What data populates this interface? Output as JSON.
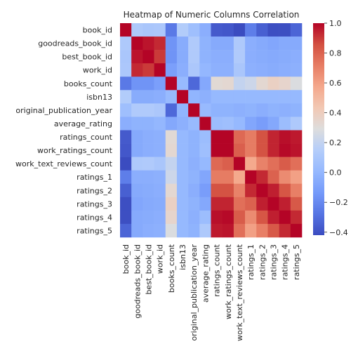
{
  "chart_data": {
    "type": "heatmap",
    "title": "Heatmap of Numeric Columns Correlation",
    "xlabel": "",
    "ylabel": "",
    "labels": [
      "book_id",
      "goodreads_book_id",
      "best_book_id",
      "work_id",
      "books_count",
      "isbn13",
      "original_publication_year",
      "average_rating",
      "ratings_count",
      "work_ratings_count",
      "work_text_reviews_count",
      "ratings_1",
      "ratings_2",
      "ratings_3",
      "ratings_4",
      "ratings_5"
    ],
    "matrix": [
      [
        1.0,
        0.12,
        0.1,
        0.11,
        -0.26,
        0.14,
        0.05,
        -0.04,
        -0.37,
        -0.38,
        -0.42,
        -0.24,
        -0.35,
        -0.41,
        -0.41,
        -0.33
      ],
      [
        0.12,
        1.0,
        0.97,
        0.93,
        -0.16,
        -0.05,
        0.13,
        -0.02,
        -0.06,
        -0.06,
        0.12,
        -0.04,
        -0.06,
        -0.08,
        -0.06,
        -0.06
      ],
      [
        0.1,
        0.97,
        1.0,
        0.9,
        -0.16,
        -0.05,
        0.13,
        -0.02,
        -0.04,
        -0.04,
        0.13,
        -0.04,
        -0.05,
        -0.06,
        -0.05,
        -0.04
      ],
      [
        0.11,
        0.93,
        0.9,
        1.0,
        -0.11,
        -0.04,
        0.11,
        0.0,
        -0.03,
        -0.03,
        0.1,
        -0.03,
        -0.04,
        -0.05,
        -0.04,
        -0.03
      ],
      [
        -0.26,
        -0.16,
        -0.16,
        -0.11,
        1.0,
        0.02,
        -0.32,
        -0.07,
        0.32,
        0.33,
        0.2,
        0.23,
        0.33,
        0.38,
        0.35,
        0.28
      ],
      [
        0.14,
        -0.05,
        -0.05,
        -0.04,
        0.02,
        1.0,
        -0.01,
        -0.03,
        0.01,
        0.01,
        0.01,
        0.01,
        0.01,
        0.01,
        0.01,
        0.01
      ],
      [
        0.05,
        0.13,
        0.13,
        0.11,
        -0.32,
        -0.01,
        1.0,
        0.02,
        -0.02,
        -0.02,
        -0.03,
        -0.02,
        -0.04,
        -0.02,
        -0.03,
        -0.02
      ],
      [
        -0.04,
        -0.02,
        -0.02,
        0.0,
        -0.07,
        -0.03,
        0.02,
        1.0,
        0.04,
        0.05,
        0.01,
        -0.08,
        -0.12,
        -0.07,
        0.04,
        0.12
      ],
      [
        -0.37,
        -0.06,
        -0.04,
        -0.03,
        0.32,
        0.01,
        -0.02,
        0.04,
        1.0,
        1.0,
        0.78,
        0.72,
        0.85,
        0.94,
        0.98,
        0.96
      ],
      [
        -0.38,
        -0.06,
        -0.04,
        -0.03,
        0.33,
        0.01,
        -0.02,
        0.05,
        1.0,
        1.0,
        0.81,
        0.72,
        0.85,
        0.94,
        0.99,
        0.97
      ],
      [
        -0.42,
        0.12,
        0.13,
        0.1,
        0.2,
        0.01,
        -0.03,
        0.01,
        0.78,
        0.81,
        1.0,
        0.57,
        0.7,
        0.76,
        0.82,
        0.76
      ],
      [
        -0.24,
        -0.04,
        -0.04,
        -0.03,
        0.23,
        0.01,
        -0.02,
        -0.08,
        0.72,
        0.72,
        0.57,
        1.0,
        0.93,
        0.8,
        0.67,
        0.6
      ],
      [
        -0.35,
        -0.06,
        -0.05,
        -0.04,
        0.33,
        0.01,
        -0.04,
        -0.12,
        0.85,
        0.85,
        0.7,
        0.93,
        1.0,
        0.95,
        0.84,
        0.71
      ],
      [
        -0.41,
        -0.08,
        -0.06,
        -0.05,
        0.38,
        0.01,
        -0.02,
        -0.07,
        0.94,
        0.94,
        0.76,
        0.8,
        0.95,
        1.0,
        0.95,
        0.83
      ],
      [
        -0.41,
        -0.06,
        -0.05,
        -0.04,
        0.35,
        0.01,
        -0.03,
        0.04,
        0.98,
        0.99,
        0.82,
        0.67,
        0.84,
        0.95,
        1.0,
        0.93
      ],
      [
        -0.33,
        -0.06,
        -0.04,
        -0.03,
        0.28,
        0.01,
        -0.02,
        0.12,
        0.96,
        0.97,
        0.76,
        0.6,
        0.71,
        0.83,
        0.93,
        1.0
      ]
    ],
    "colormap": "coolwarm",
    "vmin": -0.42,
    "vmax": 1.0,
    "colorbar_ticks": [
      "1.0",
      "0.8",
      "0.6",
      "0.4",
      "0.2",
      "0.0",
      "−0.2",
      "−0.4"
    ],
    "colorbar_tick_values": [
      1.0,
      0.8,
      0.6,
      0.4,
      0.2,
      0.0,
      -0.2,
      -0.4
    ],
    "grid": false
  }
}
